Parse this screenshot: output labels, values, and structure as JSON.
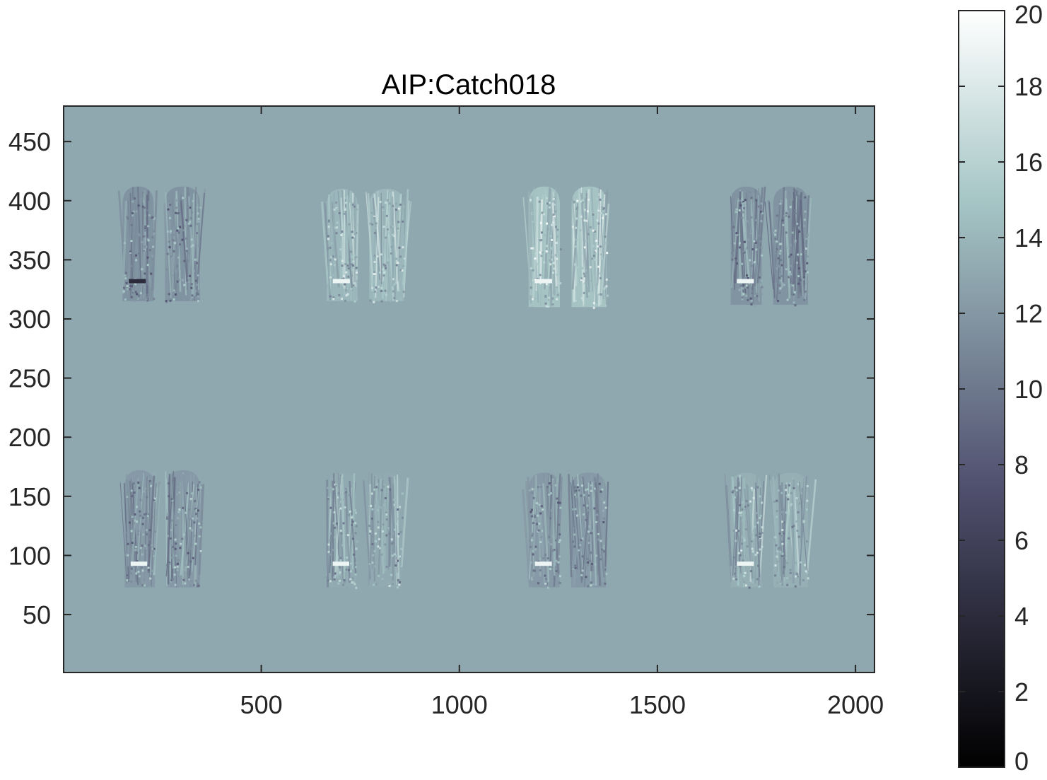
{
  "chart_data": {
    "type": "heatmap",
    "title": "AIP:Catch018",
    "xlabel": "",
    "ylabel": "",
    "xlim": [
      1,
      2048
    ],
    "ylim": [
      1,
      480
    ],
    "y_direction": "normal",
    "colormap": "bone",
    "background_value": 13,
    "x_ticks": [
      500,
      1000,
      1500,
      2000
    ],
    "x_tick_labels": [
      "500",
      "1000",
      "1500",
      "2000"
    ],
    "y_ticks": [
      50,
      100,
      150,
      200,
      250,
      300,
      350,
      400,
      450
    ],
    "y_tick_labels": [
      "50",
      "100",
      "150",
      "200",
      "250",
      "300",
      "350",
      "400",
      "450"
    ],
    "colorbar": {
      "position": "right",
      "clim": [
        0,
        20
      ],
      "ticks": [
        0,
        2,
        4,
        6,
        8,
        10,
        12,
        14,
        16,
        18,
        20
      ],
      "tick_labels": [
        "0",
        "2",
        "4",
        "6",
        "8",
        "10",
        "12",
        "14",
        "16",
        "18",
        "20"
      ]
    },
    "panels": [
      {
        "row": "top",
        "index": 1,
        "x_range": [
          150,
          345
        ],
        "y_range": [
          315,
          412
        ],
        "mean_value": 11.5
      },
      {
        "row": "top",
        "index": 2,
        "x_range": [
          665,
          860
        ],
        "y_range": [
          315,
          410
        ],
        "mean_value": 14.2
      },
      {
        "row": "top",
        "index": 3,
        "x_range": [
          1175,
          1372
        ],
        "y_range": [
          310,
          412
        ],
        "mean_value": 15.2
      },
      {
        "row": "top",
        "index": 4,
        "x_range": [
          1685,
          1880
        ],
        "y_range": [
          312,
          412
        ],
        "mean_value": 11.6
      },
      {
        "row": "bottom",
        "index": 1,
        "x_range": [
          155,
          345
        ],
        "y_range": [
          73,
          172
        ],
        "mean_value": 12.0
      },
      {
        "row": "bottom",
        "index": 2,
        "x_range": [
          665,
          855
        ],
        "y_range": [
          73,
          170
        ],
        "mean_value": 13.2
      },
      {
        "row": "bottom",
        "index": 3,
        "x_range": [
          1175,
          1370
        ],
        "y_range": [
          73,
          170
        ],
        "mean_value": 12.0
      },
      {
        "row": "bottom",
        "index": 4,
        "x_range": [
          1685,
          1880
        ],
        "y_range": [
          73,
          170
        ],
        "mean_value": 13.6
      }
    ],
    "grid": false,
    "grid_note": "Eight lung-shaped image panels (two rows of four) over a uniform background."
  }
}
